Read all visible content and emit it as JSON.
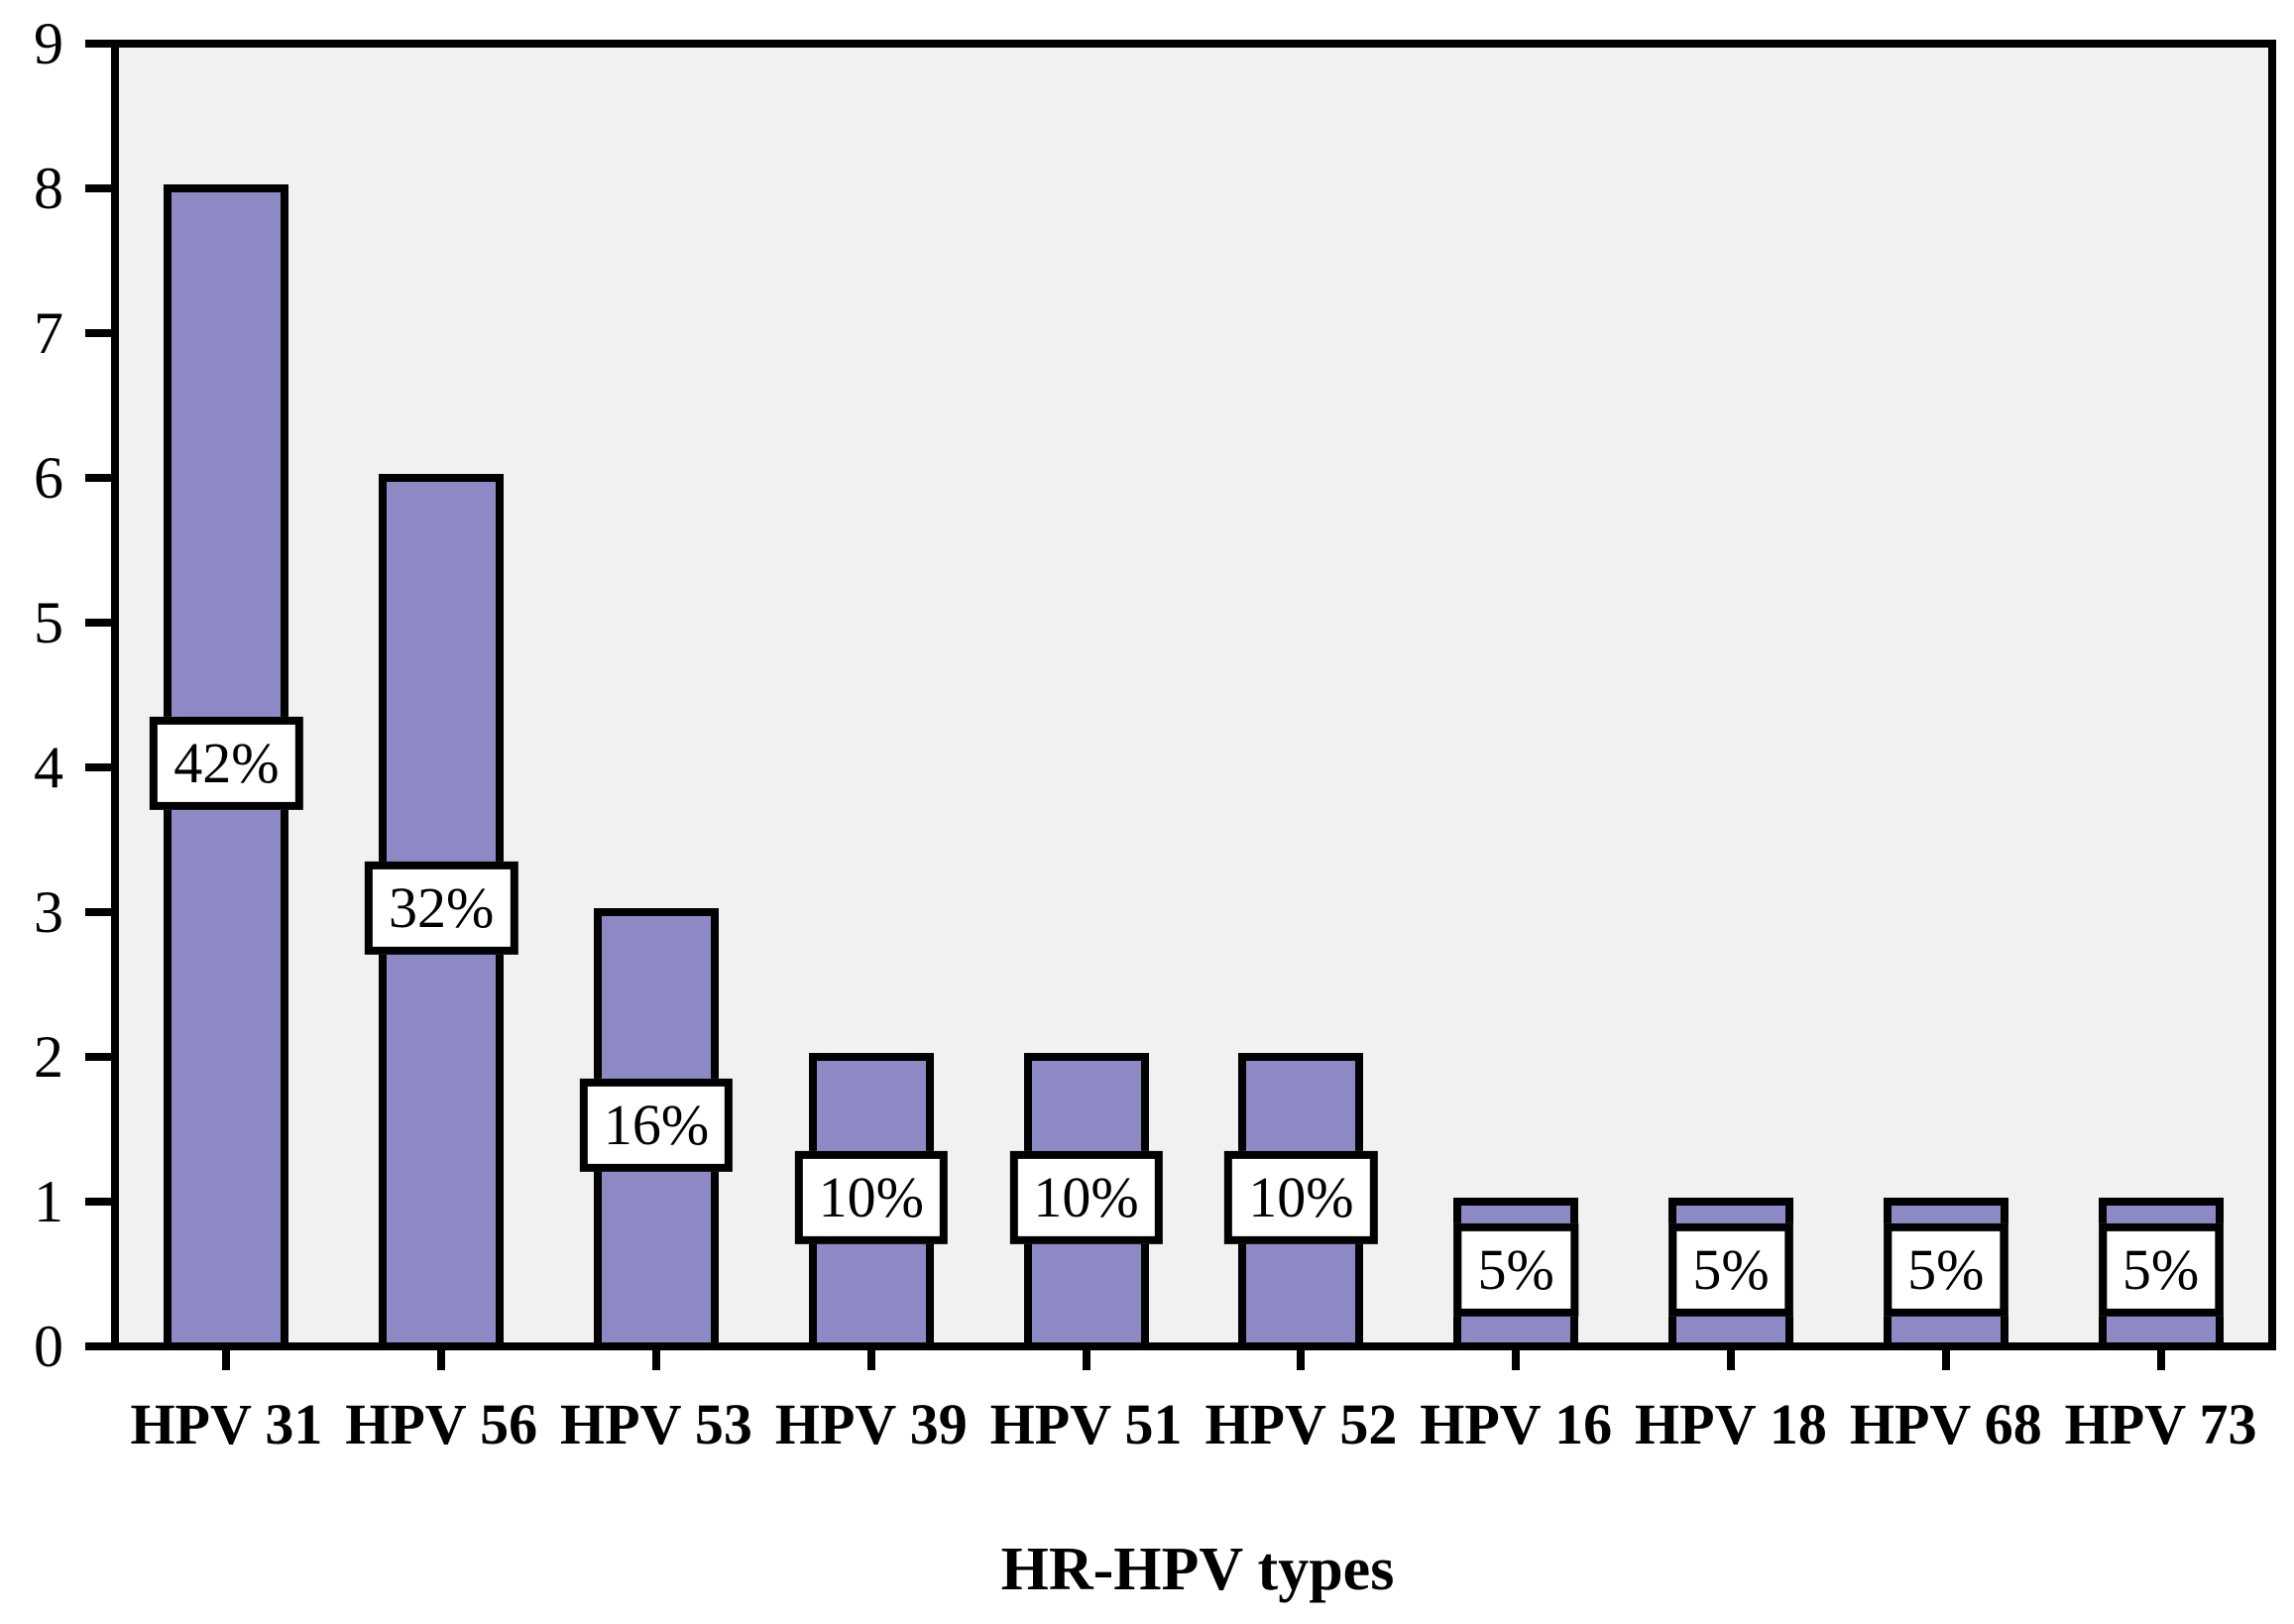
{
  "chart_data": {
    "type": "bar",
    "title": "",
    "xlabel": "HR-HPV types",
    "ylabel": "",
    "categories": [
      "HPV 31",
      "HPV 56",
      "HPV 53",
      "HPV 39",
      "HPV 51",
      "HPV 52",
      "HPV 16",
      "HPV 18",
      "HPV 68",
      "HPV 73"
    ],
    "values": [
      8,
      6,
      3,
      2,
      2,
      2,
      1,
      1,
      1,
      1
    ],
    "bar_labels": [
      "42%",
      "32%",
      "16%",
      "10%",
      "10%",
      "10%",
      "5%",
      "5%",
      "5%",
      "5%"
    ],
    "ylim": [
      0,
      9
    ],
    "ytick_step": 1,
    "yticks": [
      0,
      1,
      2,
      3,
      4,
      5,
      6,
      7,
      8,
      9
    ],
    "grid": false,
    "legend": "none",
    "colors": {
      "bar_fill": "#8d89c5",
      "bar_border": "#000000",
      "plot_background": "#f1f1f1",
      "page_background": "#ffffff",
      "label_box_background": "#ffffff",
      "text": "#000000"
    }
  }
}
